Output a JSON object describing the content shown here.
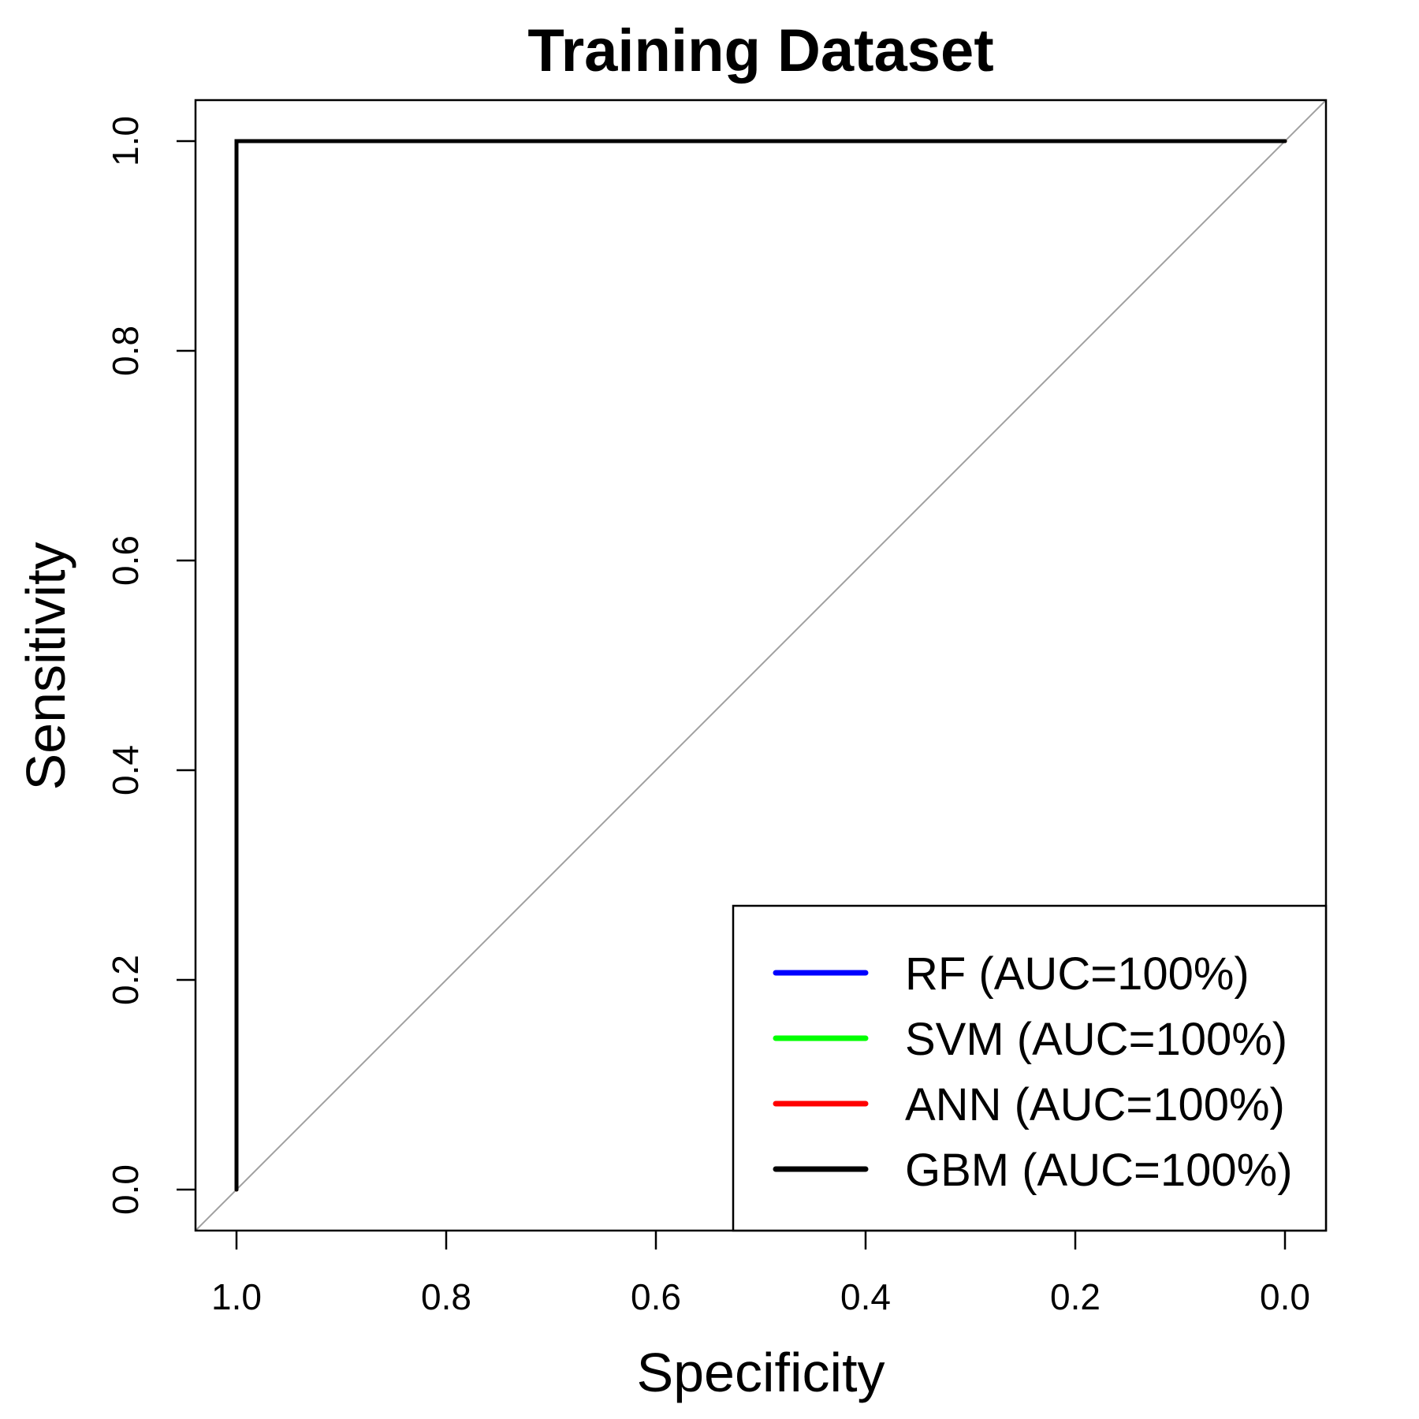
{
  "chart_data": {
    "type": "line",
    "title": "Training Dataset",
    "xlabel": "Specificity",
    "ylabel": "Sensitivity",
    "xlim": [
      1.0,
      0.0
    ],
    "ylim": [
      0.0,
      1.0
    ],
    "x_reversed": true,
    "x_ticks": [
      "1.0",
      "0.8",
      "0.6",
      "0.4",
      "0.2",
      "0.0"
    ],
    "y_ticks": [
      "0.0",
      "0.2",
      "0.4",
      "0.6",
      "0.8",
      "1.0"
    ],
    "grid": false,
    "legend_position": "bottom-right",
    "reference_line": {
      "from": [
        1.0,
        0.0
      ],
      "to": [
        0.0,
        1.0
      ],
      "color": "#a0a0a0"
    },
    "series": [
      {
        "name": "RF (AUC=100%)",
        "color": "#0000ff",
        "x": [
          1.0,
          1.0,
          0.0
        ],
        "y": [
          0.0,
          1.0,
          1.0
        ]
      },
      {
        "name": "SVM (AUC=100%)",
        "color": "#00ff00",
        "x": [
          1.0,
          1.0,
          0.0
        ],
        "y": [
          0.0,
          1.0,
          1.0
        ]
      },
      {
        "name": "ANN (AUC=100%)",
        "color": "#ff0000",
        "x": [
          1.0,
          1.0,
          0.0
        ],
        "y": [
          0.0,
          1.0,
          1.0
        ]
      },
      {
        "name": "GBM (AUC=100%)",
        "color": "#000000",
        "x": [
          1.0,
          1.0,
          0.0
        ],
        "y": [
          0.0,
          1.0,
          1.0
        ]
      }
    ]
  }
}
